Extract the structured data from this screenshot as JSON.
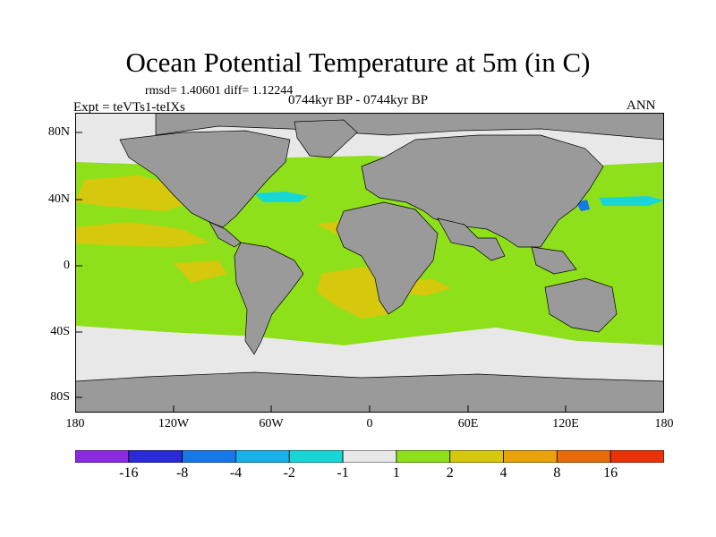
{
  "title": "Ocean Potential Temperature at 5m (in C)",
  "stats_text": "rmsd= 1.40601 diff= 1.12244",
  "experiment_text": "Expt = teVTs1-teIXs",
  "period_text": "0744kyr BP - 0744kyr BP",
  "season": "ANN",
  "y_axis_labels": [
    "80N",
    "40N",
    "0",
    "40S",
    "80S"
  ],
  "x_axis_labels": [
    "180",
    "120W",
    "60W",
    "0",
    "60E",
    "120E",
    "180"
  ],
  "colorbar": {
    "labels": [
      "-16",
      "-8",
      "-4",
      "-2",
      "-1",
      "1",
      "2",
      "4",
      "8",
      "16"
    ],
    "colors": [
      "#8a2be2",
      "#2a2ad6",
      "#1877e8",
      "#18b0e8",
      "#19d6d6",
      "#e8e8e8",
      "#8ee01a",
      "#d6c80c",
      "#e8a20a",
      "#e86a0a",
      "#e8320a"
    ]
  },
  "colors": {
    "land": "#9a9a9a",
    "ocean_neutral": "#e8e8e8",
    "green": "#8ee01a",
    "yellow": "#d6c80c",
    "orange": "#e8a20a",
    "cyan": "#19d6d6",
    "blue": "#1877e8"
  }
}
